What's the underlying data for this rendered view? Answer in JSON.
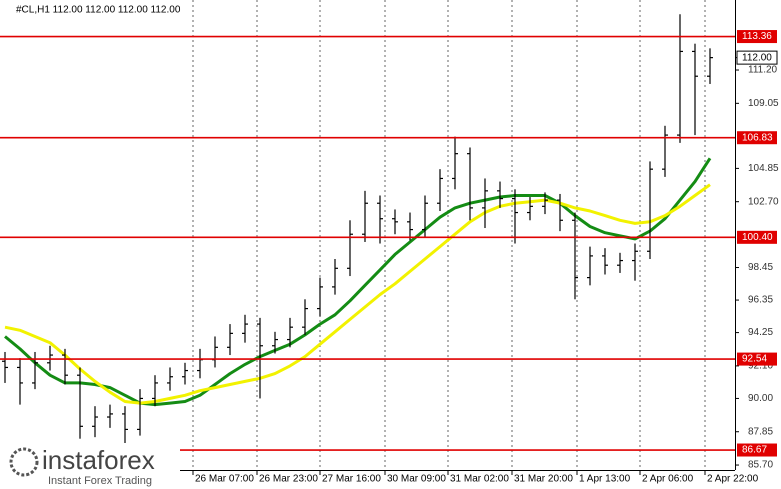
{
  "chart_data": {
    "type": "ohlc",
    "header": "#CL,H1  112.00 112.00 112.00 112.00",
    "candles": {
      "open": [
        92.4,
        92.0,
        91.0,
        92.3,
        92.8,
        91.5,
        88.2,
        88.8,
        89.0,
        88.0,
        90.0,
        91.0,
        91.4,
        91.8,
        92.5,
        93.3,
        94.2,
        94.8,
        93.4,
        93.8,
        94.6,
        95.8,
        97.2,
        98.4,
        100.6,
        102.6,
        101.6,
        101.4,
        100.9,
        102.6,
        104.2,
        105.8,
        102.3,
        103.4,
        102.9,
        102.0,
        102.4,
        102.8,
        101.5,
        97.8,
        99.2,
        98.6,
        98.9,
        99.5,
        104.8,
        107.0,
        112.4,
        110.8
      ],
      "high": [
        93.0,
        92.6,
        93.0,
        93.4,
        93.2,
        92.0,
        89.5,
        89.6,
        89.5,
        90.6,
        91.5,
        92.0,
        92.3,
        93.2,
        94.0,
        94.8,
        95.4,
        95.2,
        94.3,
        95.2,
        96.4,
        97.8,
        99.0,
        101.5,
        103.4,
        103.1,
        102.2,
        102.0,
        103.1,
        104.8,
        106.9,
        106.2,
        104.2,
        104.0,
        103.5,
        103.0,
        103.3,
        103.2,
        102.0,
        99.8,
        99.7,
        99.4,
        100.0,
        105.3,
        107.6,
        114.8,
        112.9,
        112.6
      ],
      "low": [
        91.0,
        89.6,
        90.6,
        91.8,
        90.9,
        87.4,
        87.5,
        88.1,
        86.8,
        87.6,
        89.5,
        90.5,
        90.9,
        91.3,
        92.0,
        92.8,
        93.6,
        90.0,
        92.9,
        93.3,
        94.1,
        95.3,
        96.7,
        97.9,
        100.1,
        100.0,
        100.6,
        100.2,
        100.4,
        102.1,
        103.5,
        101.5,
        101.0,
        102.3,
        100.0,
        101.5,
        101.9,
        100.8,
        96.4,
        97.3,
        98.0,
        98.1,
        97.6,
        99.0,
        104.3,
        106.5,
        107.0,
        110.3
      ],
      "close": [
        92.0,
        91.0,
        92.3,
        92.8,
        91.5,
        88.2,
        88.8,
        89.0,
        88.0,
        90.0,
        91.0,
        91.4,
        91.8,
        92.5,
        93.3,
        94.2,
        94.8,
        93.4,
        93.8,
        94.6,
        95.8,
        97.2,
        98.4,
        100.6,
        102.6,
        101.6,
        101.4,
        100.9,
        102.6,
        104.2,
        105.8,
        102.3,
        103.4,
        102.9,
        102.0,
        102.4,
        102.8,
        101.5,
        97.8,
        99.2,
        98.6,
        98.9,
        99.5,
        104.8,
        107.0,
        112.4,
        110.8,
        112.0
      ],
      "color": "#000000"
    },
    "lines": [
      {
        "color": "#148c14",
        "values": [
          94.0,
          93.2,
          92.3,
          91.5,
          91.0,
          91.0,
          90.9,
          90.7,
          90.2,
          89.7,
          89.6,
          89.7,
          89.8,
          90.2,
          90.9,
          91.6,
          92.2,
          92.7,
          93.1,
          93.5,
          94.1,
          94.8,
          95.4,
          96.3,
          97.3,
          98.3,
          99.3,
          100.1,
          100.9,
          101.7,
          102.3,
          102.6,
          102.8,
          103.0,
          103.1,
          103.1,
          103.1,
          102.6,
          101.8,
          101.1,
          100.7,
          100.5,
          100.3,
          100.8,
          101.6,
          102.8,
          104.0,
          105.5
        ]
      },
      {
        "color": "#f2f200",
        "values": [
          94.6,
          94.4,
          94.0,
          93.6,
          92.8,
          91.9,
          91.1,
          90.4,
          89.8,
          89.7,
          89.8,
          90.0,
          90.2,
          90.5,
          90.7,
          90.9,
          91.1,
          91.3,
          91.6,
          92.1,
          92.7,
          93.5,
          94.3,
          95.1,
          95.9,
          96.7,
          97.4,
          98.2,
          99.0,
          99.8,
          100.6,
          101.4,
          102.0,
          102.4,
          102.6,
          102.7,
          102.8,
          102.6,
          102.3,
          102.1,
          101.8,
          101.5,
          101.3,
          101.4,
          101.8,
          102.4,
          103.1,
          103.8
        ]
      }
    ],
    "ylim": [
      85.38,
      115.72
    ],
    "yticks": [
      {
        "value": 111.2,
        "label": "111.20"
      },
      {
        "value": 109.05,
        "label": "109.05"
      },
      {
        "value": 104.85,
        "label": "104.85"
      },
      {
        "value": 102.7,
        "label": "102.70"
      },
      {
        "value": 98.45,
        "label": "98.45"
      },
      {
        "value": 96.35,
        "label": "96.35"
      },
      {
        "value": 94.25,
        "label": "94.25"
      },
      {
        "value": 92.1,
        "label": "92.10"
      },
      {
        "value": 90,
        "label": "90.00"
      },
      {
        "value": 87.85,
        "label": "87.85"
      },
      {
        "value": 85.7,
        "label": "85.70"
      }
    ],
    "levels": [
      {
        "value": 113.36,
        "label": "113.36"
      },
      {
        "value": 106.83,
        "label": "106.83"
      },
      {
        "value": 100.4,
        "label": "100.40"
      },
      {
        "value": 92.54,
        "label": "92.54"
      },
      {
        "value": 86.67,
        "label": "86.67"
      }
    ],
    "level_color": "#e00000",
    "last_price": {
      "value": 112,
      "label": "112.00"
    },
    "x_labels": [
      "26 Mar 07:00",
      "26 Mar 23:00",
      "27 Mar 16:00",
      "30 Mar 09:00",
      "31 Mar 02:00",
      "31 Mar 20:00",
      "1 Apr 13:00",
      "2 Apr 06:00",
      "2 Apr 22:00"
    ]
  },
  "logo": {
    "name": "instaforex",
    "tagline": "Instant Forex Trading"
  }
}
